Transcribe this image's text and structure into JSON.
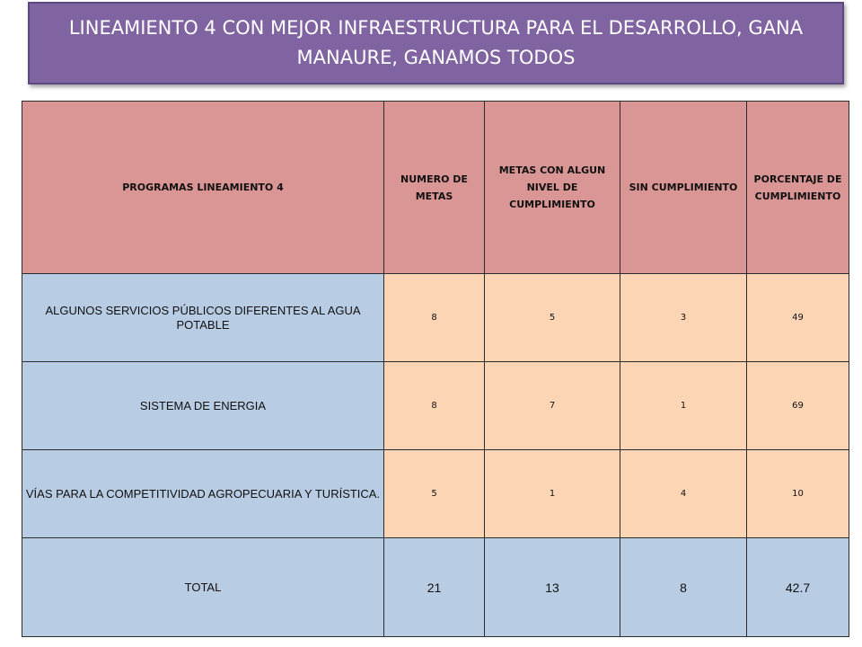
{
  "title": "LINEAMIENTO 4 CON MEJOR INFRAESTRUCTURA PARA EL DESARROLLO, GANA MANAURE, GANAMOS TODOS",
  "colors": {
    "title_bg": "#8064a2",
    "header_bg": "#da9694",
    "program_bg": "#b8cce4",
    "value_bg": "#fcd5b4"
  },
  "table": {
    "headers": [
      "PROGRAMAS LINEAMIENTO 4",
      "NUMERO DE METAS",
      "METAS CON ALGUN NIVEL DE CUMPLIMIENTO",
      "SIN CUMPLIMIENTO",
      "PORCENTAJE DE CUMPLIMIENTO"
    ],
    "rows": [
      {
        "program": "ALGUNOS SERVICIOS PÚBLICOS DIFERENTES AL AGUA POTABLE",
        "metas": "8",
        "con_cumplimiento": "5",
        "sin_cumplimiento": "3",
        "porcentaje": "49"
      },
      {
        "program": "SISTEMA DE ENERGIA",
        "metas": "8",
        "con_cumplimiento": "7",
        "sin_cumplimiento": "1",
        "porcentaje": "69"
      },
      {
        "program": "VÍAS PARA LA COMPETITIVIDAD AGROPECUARIA Y TURÍSTICA.",
        "metas": "5",
        "con_cumplimiento": "1",
        "sin_cumplimiento": "4",
        "porcentaje": "10"
      }
    ],
    "total": {
      "label": "TOTAL",
      "metas": "21",
      "con_cumplimiento": "13",
      "sin_cumplimiento": "8",
      "porcentaje": "42.7"
    }
  }
}
